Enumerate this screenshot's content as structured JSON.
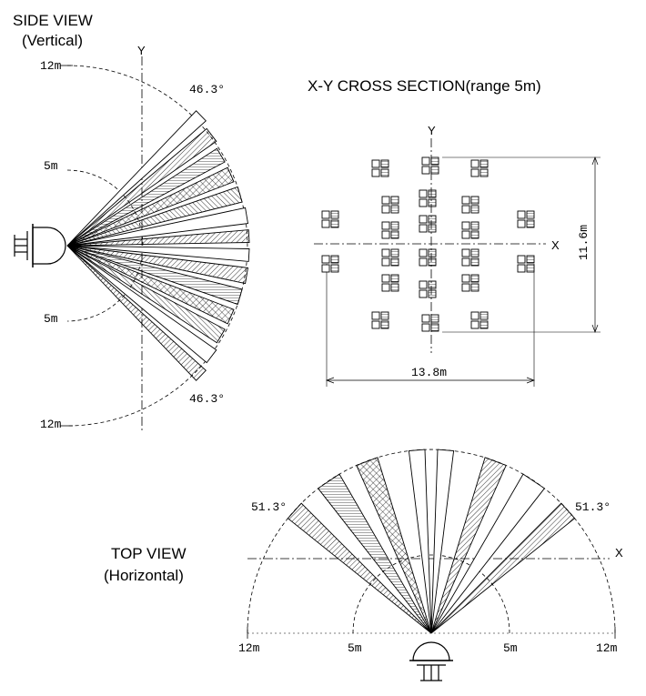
{
  "side_view": {
    "title": "SIDE VIEW",
    "subtitle": "(Vertical)",
    "axis_y": "Y",
    "angle_top": "46.3°",
    "angle_bottom": "46.3°",
    "r_top_12": "12m",
    "r_top_5": "5m",
    "r_bottom_5": "5m",
    "r_bottom_12": "12m"
  },
  "cross_section": {
    "title": "X-Y CROSS SECTION(range 5m)",
    "axis_y": "Y",
    "axis_x": "X",
    "height_dim": "11.6m",
    "width_dim": "13.8m"
  },
  "top_view": {
    "title": "TOP VIEW",
    "subtitle": "(Horizontal)",
    "axis_x": "X",
    "angle_left": "51.3°",
    "angle_right": "51.3°",
    "r_left_12": "12m",
    "r_left_5": "5m",
    "r_right_5": "5m",
    "r_right_12": "12m"
  }
}
